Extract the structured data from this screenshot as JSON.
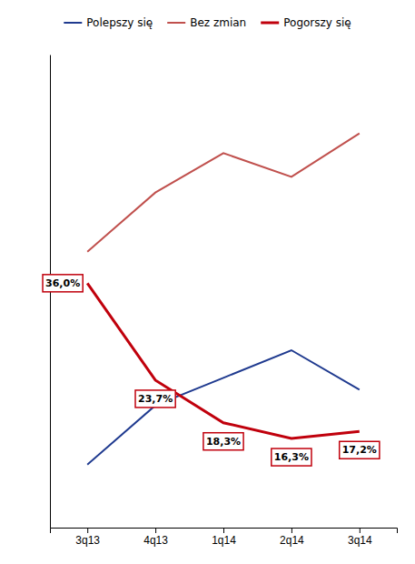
{
  "chart_data": {
    "type": "line",
    "categories": [
      "3q13",
      "4q13",
      "1q14",
      "2q14",
      "3q14"
    ],
    "ylim": [
      5,
      65
    ],
    "tick_labels": "x",
    "grid": false,
    "legend": "top",
    "series": [
      {
        "name": "Polepszy się",
        "color": "#1F3A8F",
        "values": [
          13.0,
          20.5,
          24.0,
          27.5,
          22.5
        ]
      },
      {
        "name": "Bez zmian",
        "color": "#C0504D",
        "values": [
          40.0,
          47.5,
          52.5,
          49.5,
          55.0
        ]
      },
      {
        "name": "Pogorszy się",
        "color": "#C0000C",
        "values": [
          36.0,
          23.7,
          18.3,
          16.3,
          17.2
        ],
        "data_labels": true,
        "value_labels": [
          "36,0%",
          "23,7%",
          "18,3%",
          "16,3%",
          "17,2%"
        ]
      }
    ]
  }
}
